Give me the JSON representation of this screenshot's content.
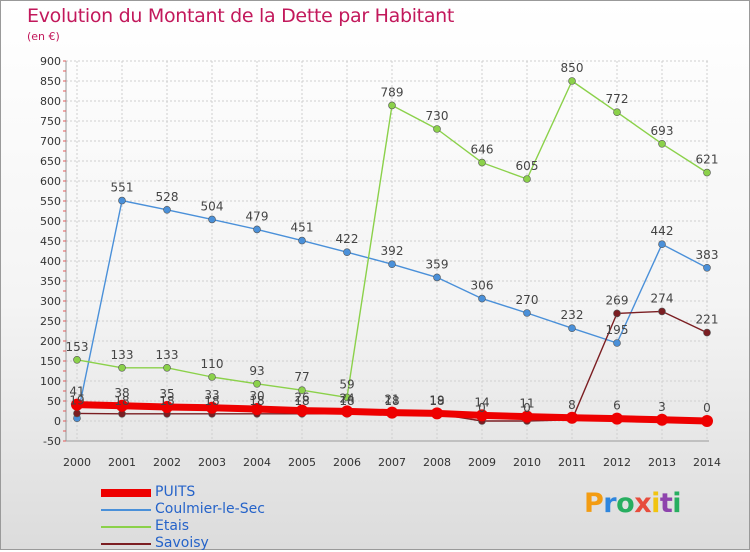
{
  "title": "Evolution du Montant de la Dette par Habitant",
  "subtitle": "(en €)",
  "logo": {
    "letters": [
      "P",
      "r",
      "o",
      "x",
      "i",
      "t",
      "i"
    ],
    "colors": [
      "#f39c12",
      "#2e86de",
      "#27ae60",
      "#e74c3c",
      "#f1c40f",
      "#8e44ad",
      "#27ae60"
    ]
  },
  "chart_data": {
    "type": "line",
    "x": [
      "2000",
      "2001",
      "2002",
      "2003",
      "2004",
      "2005",
      "2006",
      "2007",
      "2008",
      "2009",
      "2010",
      "2011",
      "2012",
      "2013",
      "2014"
    ],
    "yticks": [
      "-50",
      "0",
      "50",
      "100",
      "150",
      "200",
      "250",
      "300",
      "350",
      "400",
      "450",
      "500",
      "550",
      "600",
      "650",
      "700",
      "750",
      "800",
      "850",
      "900"
    ],
    "ylim": [
      -50,
      900
    ],
    "grid": true,
    "legend_position": "bottom-left",
    "series": [
      {
        "name": "PUITS",
        "color": "#ee0000",
        "values": [
          41,
          38,
          35,
          33,
          30,
          26,
          24,
          21,
          19,
          14,
          11,
          8,
          6,
          3,
          0
        ],
        "labels": [
          "41",
          "38",
          "35",
          "33",
          "30",
          "26",
          "24",
          "21",
          "19",
          "14",
          "11",
          "8",
          "6",
          "3",
          "0"
        ]
      },
      {
        "name": "Coulmier-le-Sec",
        "color": "#4a90d9",
        "values": [
          7,
          551,
          528,
          504,
          479,
          451,
          422,
          392,
          359,
          306,
          270,
          232,
          195,
          442,
          383
        ],
        "labels": [
          "",
          "551",
          "528",
          "504",
          "479",
          "451",
          "422",
          "392",
          "359",
          "306",
          "270",
          "232",
          "195",
          "442",
          "383"
        ]
      },
      {
        "name": "Etais",
        "color": "#8bd14a",
        "values": [
          153,
          133,
          133,
          110,
          93,
          77,
          59,
          789,
          730,
          646,
          605,
          850,
          772,
          693,
          621
        ],
        "labels": [
          "153",
          "133",
          "133",
          "110",
          "93",
          "77",
          "59",
          "789",
          "730",
          "646",
          "605",
          "850",
          "772",
          "693",
          "621"
        ]
      },
      {
        "name": "Savoisy",
        "color": "#7b1e22",
        "values": [
          19,
          18,
          18,
          18,
          18,
          18,
          18,
          18,
          18,
          0,
          0,
          3,
          269,
          274,
          221
        ],
        "labels": [
          "19",
          "18",
          "18",
          "18",
          "18",
          "18",
          "18",
          "18",
          "18",
          "0",
          "0",
          "",
          "269",
          "274",
          "221"
        ]
      }
    ]
  }
}
